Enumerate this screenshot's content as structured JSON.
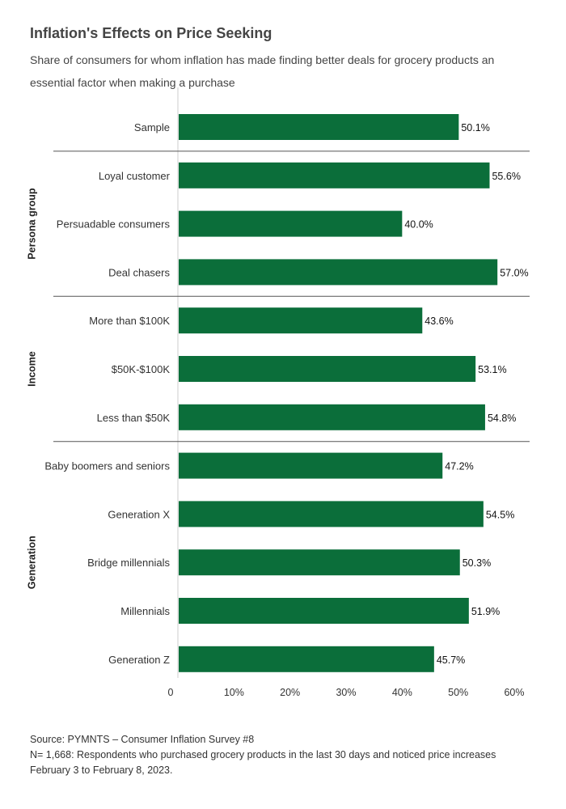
{
  "chart_data": {
    "type": "bar",
    "orientation": "horizontal",
    "title": "Inflation's Effects on Price Seeking",
    "subtitle": "Share of consumers for whom inflation has made finding better deals for grocery products an essential factor when making a purchase",
    "xlim": [
      0,
      60
    ],
    "x_ticks": [
      "0",
      "10%",
      "20%",
      "30%",
      "40%",
      "50%",
      "60%"
    ],
    "x_tick_values": [
      0,
      10,
      20,
      30,
      40,
      50,
      60
    ],
    "bar_color": "#0b6e3a",
    "groups": [
      {
        "name": "",
        "items": [
          {
            "label": "Sample",
            "value": 50.1,
            "display": "50.1%"
          }
        ]
      },
      {
        "name": "Persona group",
        "items": [
          {
            "label": "Loyal customer",
            "value": 55.6,
            "display": "55.6%"
          },
          {
            "label": "Persuadable consumers",
            "value": 40.0,
            "display": "40.0%"
          },
          {
            "label": "Deal chasers",
            "value": 57.0,
            "display": "57.0%"
          }
        ]
      },
      {
        "name": "Income",
        "items": [
          {
            "label": "More than $100K",
            "value": 43.6,
            "display": "43.6%"
          },
          {
            "label": "$50K-$100K",
            "value": 53.1,
            "display": "53.1%"
          },
          {
            "label": "Less than $50K",
            "value": 54.8,
            "display": "54.8%"
          }
        ]
      },
      {
        "name": "Generation",
        "items": [
          {
            "label": "Baby boomers and seniors",
            "value": 47.2,
            "display": "47.2%"
          },
          {
            "label": "Generation X",
            "value": 54.5,
            "display": "54.5%"
          },
          {
            "label": "Bridge millennials",
            "value": 50.3,
            "display": "50.3%"
          },
          {
            "label": "Millennials",
            "value": 51.9,
            "display": "51.9%"
          },
          {
            "label": "Generation Z",
            "value": 45.7,
            "display": "45.7%"
          }
        ]
      }
    ]
  },
  "footer": {
    "source": "Source: PYMNTS – Consumer Inflation Survey #8",
    "note": "N= 1,668: Respondents who purchased grocery products in the last 30 days and noticed price increases",
    "dates": "February 3 to February 8, 2023."
  }
}
